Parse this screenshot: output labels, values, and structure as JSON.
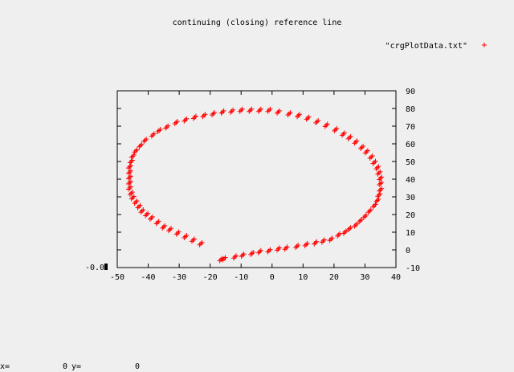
{
  "chart_data": {
    "type": "scatter",
    "title": "continuing (closing) reference line",
    "xlim": [
      -50,
      40
    ],
    "ylim": [
      -10,
      90
    ],
    "x_ticks": [
      -50,
      -40,
      -30,
      -20,
      -10,
      0,
      10,
      20,
      30,
      40
    ],
    "y_ticks": [
      -10,
      0,
      10,
      20,
      30,
      40,
      50,
      60,
      70,
      80,
      90
    ],
    "left_axis_label": "-0.0",
    "grid": false,
    "legend_position": "top-right",
    "series": [
      {
        "name": "\"crgPlotData.txt\"",
        "marker": "+",
        "color": "#ff0000",
        "points": [
          [
            -16.5,
            -5.5
          ],
          [
            -15.5,
            -5.0
          ],
          [
            -12,
            -4.0
          ],
          [
            -9.5,
            -3.0
          ],
          [
            -6.5,
            -2.0
          ],
          [
            -4,
            -1.0
          ],
          [
            -1,
            -0.5
          ],
          [
            2,
            0.5
          ],
          [
            4.5,
            1.0
          ],
          [
            8,
            2.0
          ],
          [
            11,
            3.0
          ],
          [
            14,
            4.0
          ],
          [
            16.5,
            5.0
          ],
          [
            19,
            6.0
          ],
          [
            21.5,
            8.5
          ],
          [
            23.5,
            10.0
          ],
          [
            25,
            12.0
          ],
          [
            27,
            14.0
          ],
          [
            28.5,
            16.5
          ],
          [
            30,
            19.0
          ],
          [
            31.5,
            22.0
          ],
          [
            33,
            25.0
          ],
          [
            34,
            28.0
          ],
          [
            34.5,
            31.0
          ],
          [
            35,
            34.0
          ],
          [
            35,
            37.5
          ],
          [
            35,
            40.5
          ],
          [
            34.5,
            43.5
          ],
          [
            34,
            46.5
          ],
          [
            33,
            49.5
          ],
          [
            32,
            52.5
          ],
          [
            30.5,
            55.5
          ],
          [
            29,
            58.0
          ],
          [
            27,
            61.0
          ],
          [
            25,
            63.5
          ],
          [
            23,
            65.5
          ],
          [
            20.5,
            68.0
          ],
          [
            17.5,
            70.5
          ],
          [
            14.5,
            72.5
          ],
          [
            11.5,
            74.5
          ],
          [
            8.5,
            76.0
          ],
          [
            5.5,
            77.0
          ],
          [
            2,
            78.0
          ],
          [
            -1,
            79.0
          ],
          [
            -4,
            79.0
          ],
          [
            -7,
            79.0
          ],
          [
            -10,
            79.0
          ],
          [
            -13,
            78.5
          ],
          [
            -16,
            78.0
          ],
          [
            -19,
            77.0
          ],
          [
            -22,
            76.0
          ],
          [
            -25,
            75.0
          ],
          [
            -28,
            73.5
          ],
          [
            -31,
            72.0
          ],
          [
            -34,
            69.5
          ],
          [
            -36.5,
            67.5
          ],
          [
            -38.5,
            65.0
          ],
          [
            -41,
            62.0
          ],
          [
            -42.5,
            59.0
          ],
          [
            -44,
            56.0
          ],
          [
            -45,
            53.0
          ],
          [
            -45.5,
            50.0
          ],
          [
            -46,
            47.0
          ],
          [
            -46,
            44.0
          ],
          [
            -46,
            41.0
          ],
          [
            -46,
            38.0
          ],
          [
            -46,
            35.0
          ],
          [
            -45.5,
            32.0
          ],
          [
            -45,
            29.5
          ],
          [
            -44,
            27.0
          ],
          [
            -43,
            24.5
          ],
          [
            -42,
            22.0
          ],
          [
            -40.5,
            20.0
          ],
          [
            -39,
            18.0
          ],
          [
            -37,
            15.5
          ],
          [
            -35,
            13.0
          ],
          [
            -33,
            11.5
          ],
          [
            -30.5,
            9.5
          ],
          [
            -28,
            7.5
          ],
          [
            -25.5,
            5.5
          ],
          [
            -23,
            3.5
          ]
        ]
      }
    ]
  },
  "status": {
    "x_label": "x=",
    "x_value": "0",
    "y_label": "y=",
    "y_value": "0"
  }
}
